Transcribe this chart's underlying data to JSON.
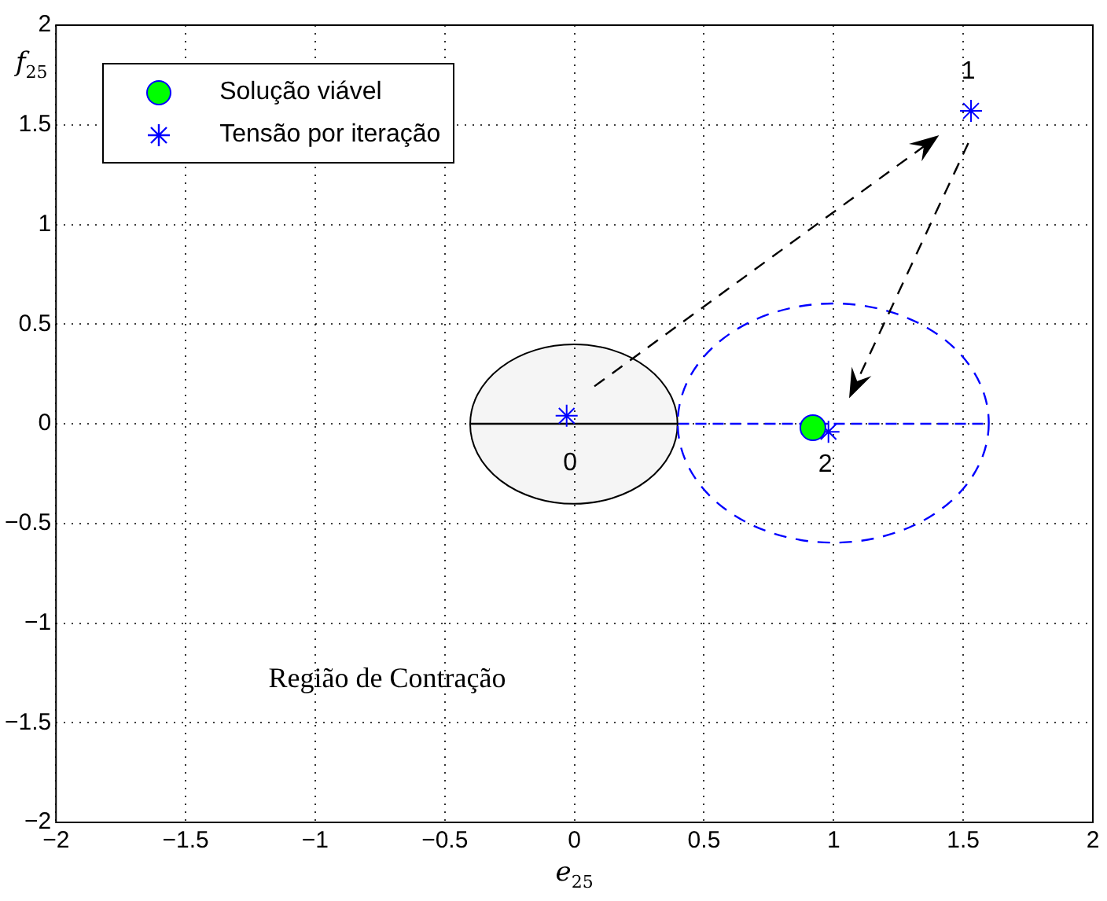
{
  "chart_data": {
    "type": "scatter",
    "xlabel": "e$_{25}$",
    "ylabel": "f$_{25}$",
    "xlim": [
      -2,
      2
    ],
    "ylim": [
      -2,
      2
    ],
    "xticks": [
      {
        "value": -2,
        "label": "−2"
      },
      {
        "value": -1.5,
        "label": "−1.5"
      },
      {
        "value": -1,
        "label": "−1"
      },
      {
        "value": -0.5,
        "label": "−0.5"
      },
      0,
      0.5,
      1,
      1.5,
      2
    ],
    "yticks": [
      {
        "value": -2,
        "label": "−2"
      },
      {
        "value": -1.5,
        "label": "−1.5"
      },
      {
        "value": -1,
        "label": "−1"
      },
      {
        "value": -0.5,
        "label": "−0.5"
      },
      0,
      0.5,
      1,
      1.5,
      2
    ],
    "grid": true,
    "legend": "top left",
    "series": [
      {
        "type": "line",
        "color": "#000000",
        "line_style": "solid",
        "x": [
          -0.4,
          0,
          0.4
        ],
        "values": [
          0,
          0,
          0
        ]
      },
      {
        "type": "line",
        "color": "#0000ff",
        "line_style": "dashed",
        "x": [
          0.4,
          1,
          1.6
        ],
        "values": [
          0,
          0,
          0
        ]
      },
      {
        "name": "Solução viável",
        "color": "#00ff00",
        "marker": "circle",
        "x": [
          0.92
        ],
        "values": [
          -0.02
        ]
      },
      {
        "name": "Tensão por iteração",
        "color": "#0000ff",
        "marker": "cross",
        "x": [
          -0.03,
          1.53,
          0.98
        ],
        "values": [
          0.04,
          1.57,
          -0.04
        ]
      }
    ],
    "annotations": [
      "0",
      "1",
      "2",
      "Região de Contração"
    ]
  }
}
